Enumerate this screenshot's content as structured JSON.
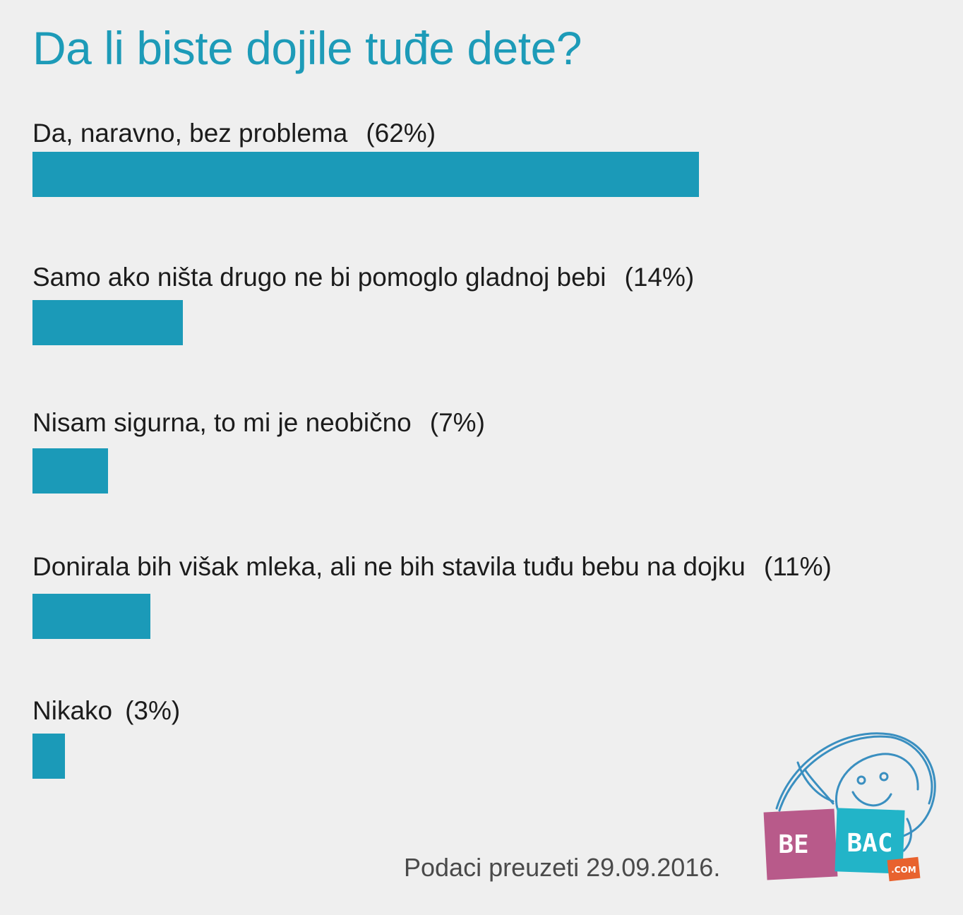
{
  "title": "Da li biste dojile tuđe dete?",
  "source_note": "Podaci preuzeti 29.09.2016.",
  "logo": {
    "text_left": "BE",
    "text_right": "BAC",
    "text_domain": ".COM",
    "colors": {
      "magenta": "#b85a8a",
      "cyan": "#22b4c8",
      "orange": "#e8622e",
      "sketch": "#3a8fc0"
    }
  },
  "colors": {
    "bar": "#1b9ab8",
    "title": "#1d9bb8",
    "background": "#efefef"
  },
  "chart_data": {
    "type": "bar",
    "orientation": "horizontal",
    "title": "Da li biste dojile tuđe dete?",
    "categories": [
      "Da, naravno, bez problema",
      "Samo ako ništa drugo ne bi pomoglo gladnoj bebi",
      "Nisam sigurna, to mi je neobično",
      "Donirala bih višak mleka, ali ne bih stavila tuđu bebu na dojku",
      "Nikako"
    ],
    "values": [
      62,
      14,
      7,
      11,
      3
    ],
    "value_labels": [
      "(62%)",
      "(14%)",
      "(7%)",
      "(11%)",
      "(3%)"
    ],
    "unit": "%",
    "xlim": [
      0,
      62
    ],
    "grid": false
  }
}
